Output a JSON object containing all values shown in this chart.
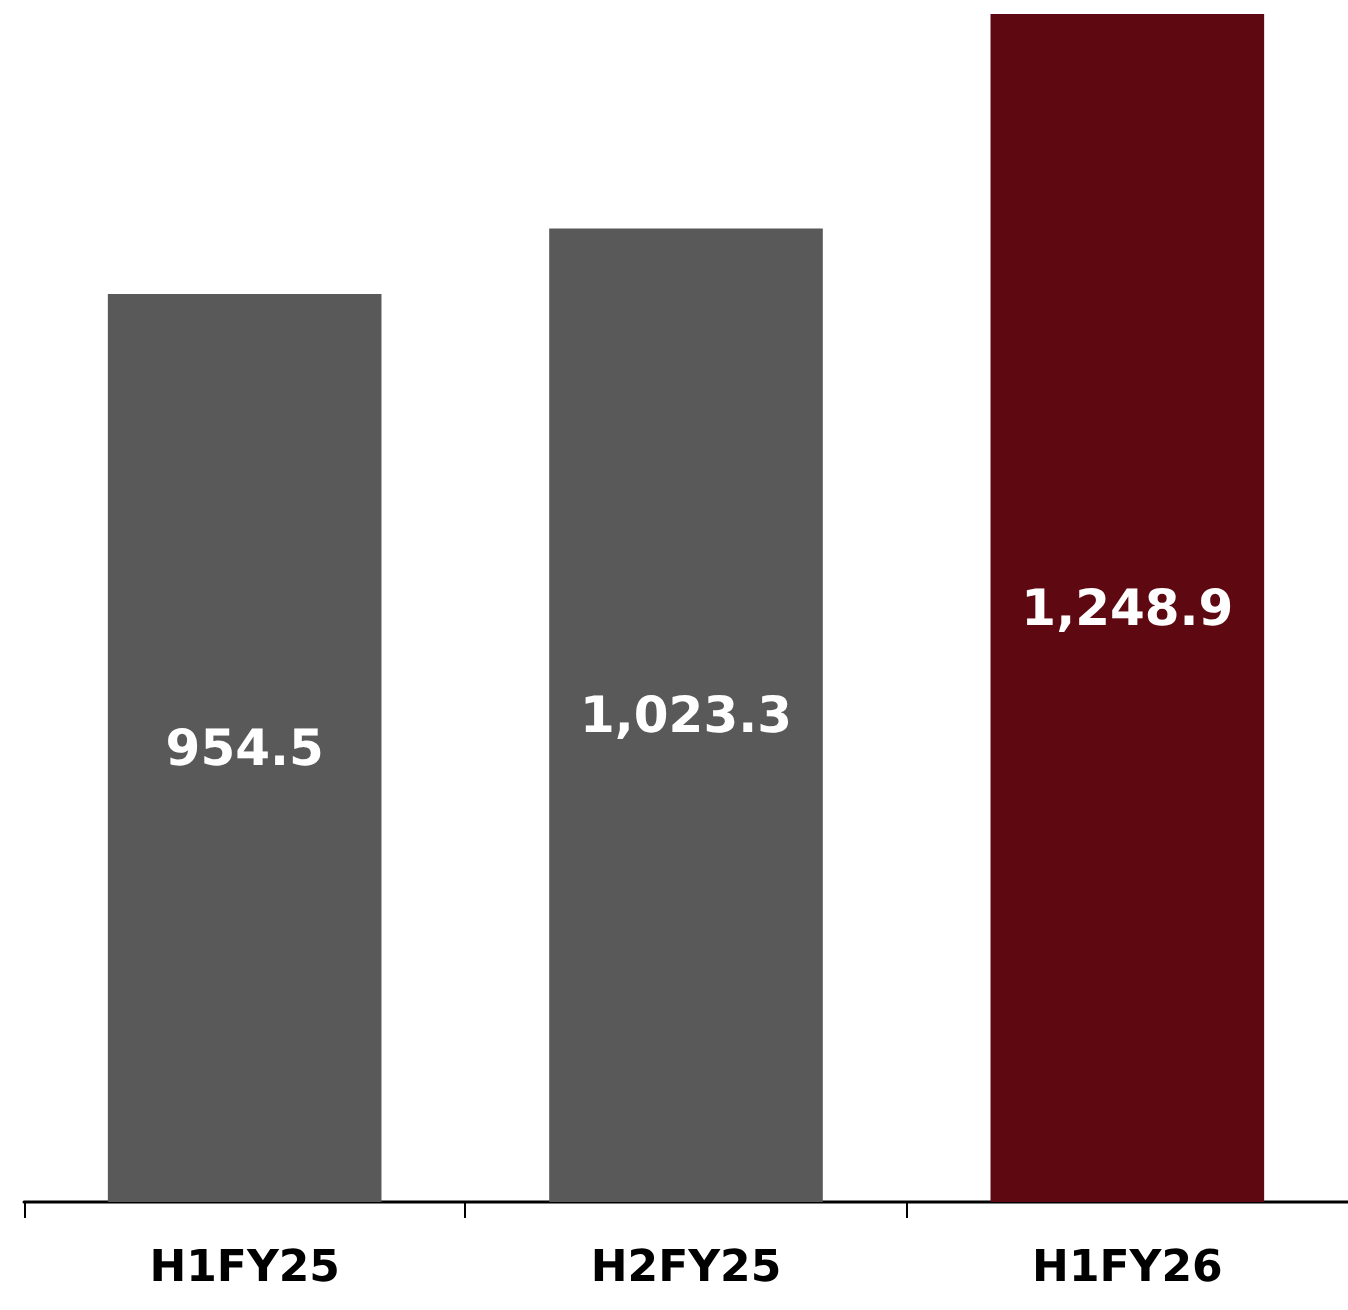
{
  "chart_data": {
    "type": "bar",
    "categories": [
      "H1FY25",
      "H2FY25",
      "H1FY26"
    ],
    "values": [
      954.5,
      1023.3,
      1248.9
    ],
    "colors": [
      "#595959",
      "#595959",
      "#5e0811"
    ],
    "value_labels": [
      "954.5",
      "1,023.3",
      "1,248.9"
    ]
  }
}
